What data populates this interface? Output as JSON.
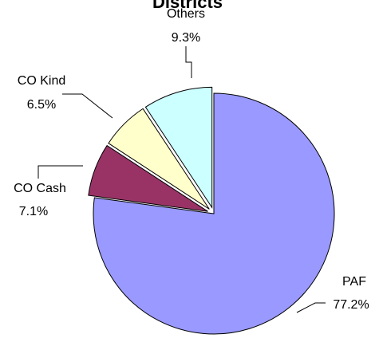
{
  "chart_data": {
    "type": "pie",
    "title": "Districts",
    "exploded": true,
    "slices": [
      {
        "name": "PAF",
        "value": 77.2,
        "label": "77.2%",
        "color": "#9999ff"
      },
      {
        "name": "CO Cash",
        "value": 7.1,
        "label": "7.1%",
        "color": "#993366"
      },
      {
        "name": "CO Kind",
        "value": 6.5,
        "label": "6.5%",
        "color": "#ffffcc"
      },
      {
        "name": "Others",
        "value": 9.3,
        "label": "9.3%",
        "color": "#ccffff"
      }
    ]
  }
}
